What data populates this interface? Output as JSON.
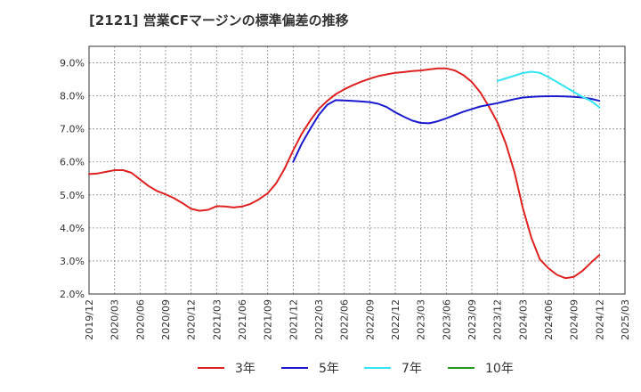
{
  "title": "[2121]  営業CFマージンの標準偏差の推移",
  "chart_data": {
    "type": "line",
    "title": "[2121]  営業CFマージンの標準偏差の推移",
    "x_ticks": [
      "2019/12",
      "2020/03",
      "2020/06",
      "2020/09",
      "2020/12",
      "2021/03",
      "2021/06",
      "2021/09",
      "2021/12",
      "2022/03",
      "2022/06",
      "2022/09",
      "2022/12",
      "2023/03",
      "2023/06",
      "2023/09",
      "2023/12",
      "2024/03",
      "2024/06",
      "2024/09",
      "2024/12",
      "2025/03"
    ],
    "y_ticks": [
      "2.0%",
      "3.0%",
      "4.0%",
      "5.0%",
      "6.0%",
      "7.0%",
      "8.0%",
      "9.0%"
    ],
    "ylim": [
      2.0,
      9.5
    ],
    "x_range": [
      "2019/12",
      "2025/03"
    ],
    "grid": true,
    "legend_position": "bottom",
    "series": [
      {
        "name": "3年",
        "color": "#dd2222",
        "points": [
          [
            "2019/12",
            5.63
          ],
          [
            "2020/01",
            5.65
          ],
          [
            "2020/02",
            5.7
          ],
          [
            "2020/03",
            5.75
          ],
          [
            "2020/04",
            5.75
          ],
          [
            "2020/05",
            5.67
          ],
          [
            "2020/06",
            5.47
          ],
          [
            "2020/07",
            5.27
          ],
          [
            "2020/08",
            5.12
          ],
          [
            "2020/09",
            5.02
          ],
          [
            "2020/10",
            4.9
          ],
          [
            "2020/11",
            4.75
          ],
          [
            "2020/12",
            4.58
          ],
          [
            "2021/01",
            4.52
          ],
          [
            "2021/02",
            4.55
          ],
          [
            "2021/03",
            4.66
          ],
          [
            "2021/04",
            4.65
          ],
          [
            "2021/05",
            4.62
          ],
          [
            "2021/06",
            4.65
          ],
          [
            "2021/07",
            4.73
          ],
          [
            "2021/08",
            4.87
          ],
          [
            "2021/09",
            5.05
          ],
          [
            "2021/10",
            5.35
          ],
          [
            "2021/11",
            5.8
          ],
          [
            "2021/12",
            6.35
          ],
          [
            "2022/01",
            6.85
          ],
          [
            "2022/02",
            7.25
          ],
          [
            "2022/03",
            7.6
          ],
          [
            "2022/04",
            7.85
          ],
          [
            "2022/05",
            8.05
          ],
          [
            "2022/06",
            8.2
          ],
          [
            "2022/07",
            8.32
          ],
          [
            "2022/08",
            8.43
          ],
          [
            "2022/09",
            8.52
          ],
          [
            "2022/10",
            8.6
          ],
          [
            "2022/11",
            8.65
          ],
          [
            "2022/12",
            8.7
          ],
          [
            "2023/01",
            8.72
          ],
          [
            "2023/02",
            8.75
          ],
          [
            "2023/03",
            8.77
          ],
          [
            "2023/04",
            8.8
          ],
          [
            "2023/05",
            8.83
          ],
          [
            "2023/06",
            8.83
          ],
          [
            "2023/07",
            8.77
          ],
          [
            "2023/08",
            8.63
          ],
          [
            "2023/09",
            8.42
          ],
          [
            "2023/10",
            8.1
          ],
          [
            "2023/11",
            7.68
          ],
          [
            "2023/12",
            7.2
          ],
          [
            "2024/01",
            6.55
          ],
          [
            "2024/02",
            5.7
          ],
          [
            "2024/03",
            4.6
          ],
          [
            "2024/04",
            3.7
          ],
          [
            "2024/05",
            3.05
          ],
          [
            "2024/06",
            2.78
          ],
          [
            "2024/07",
            2.58
          ],
          [
            "2024/08",
            2.48
          ],
          [
            "2024/09",
            2.52
          ],
          [
            "2024/10",
            2.7
          ],
          [
            "2024/11",
            2.95
          ],
          [
            "2024/12",
            3.18
          ]
        ]
      },
      {
        "name": "5年",
        "color": "#1a1acc",
        "points": [
          [
            "2021/12",
            6.0
          ],
          [
            "2022/01",
            6.55
          ],
          [
            "2022/02",
            7.0
          ],
          [
            "2022/03",
            7.42
          ],
          [
            "2022/04",
            7.73
          ],
          [
            "2022/05",
            7.87
          ],
          [
            "2022/06",
            7.86
          ],
          [
            "2022/07",
            7.85
          ],
          [
            "2022/08",
            7.83
          ],
          [
            "2022/09",
            7.81
          ],
          [
            "2022/10",
            7.76
          ],
          [
            "2022/11",
            7.66
          ],
          [
            "2022/12",
            7.5
          ],
          [
            "2023/01",
            7.37
          ],
          [
            "2023/02",
            7.25
          ],
          [
            "2023/03",
            7.18
          ],
          [
            "2023/04",
            7.17
          ],
          [
            "2023/05",
            7.23
          ],
          [
            "2023/06",
            7.32
          ],
          [
            "2023/07",
            7.42
          ],
          [
            "2023/08",
            7.52
          ],
          [
            "2023/09",
            7.6
          ],
          [
            "2023/10",
            7.68
          ],
          [
            "2023/11",
            7.73
          ],
          [
            "2023/12",
            7.78
          ],
          [
            "2024/01",
            7.84
          ],
          [
            "2024/02",
            7.9
          ],
          [
            "2024/03",
            7.95
          ],
          [
            "2024/04",
            7.97
          ],
          [
            "2024/05",
            7.98
          ],
          [
            "2024/06",
            7.99
          ],
          [
            "2024/07",
            7.99
          ],
          [
            "2024/08",
            7.98
          ],
          [
            "2024/09",
            7.97
          ],
          [
            "2024/10",
            7.95
          ],
          [
            "2024/11",
            7.91
          ],
          [
            "2024/12",
            7.85
          ]
        ]
      },
      {
        "name": "7年",
        "color": "#33e5f0",
        "points": [
          [
            "2023/12",
            8.45
          ],
          [
            "2024/01",
            8.53
          ],
          [
            "2024/02",
            8.61
          ],
          [
            "2024/03",
            8.69
          ],
          [
            "2024/04",
            8.73
          ],
          [
            "2024/05",
            8.7
          ],
          [
            "2024/06",
            8.57
          ],
          [
            "2024/07",
            8.42
          ],
          [
            "2024/08",
            8.27
          ],
          [
            "2024/09",
            8.12
          ],
          [
            "2024/10",
            7.97
          ],
          [
            "2024/11",
            7.85
          ],
          [
            "2024/12",
            7.65
          ]
        ]
      },
      {
        "name": "10年",
        "color": "#229922",
        "points": []
      }
    ]
  }
}
